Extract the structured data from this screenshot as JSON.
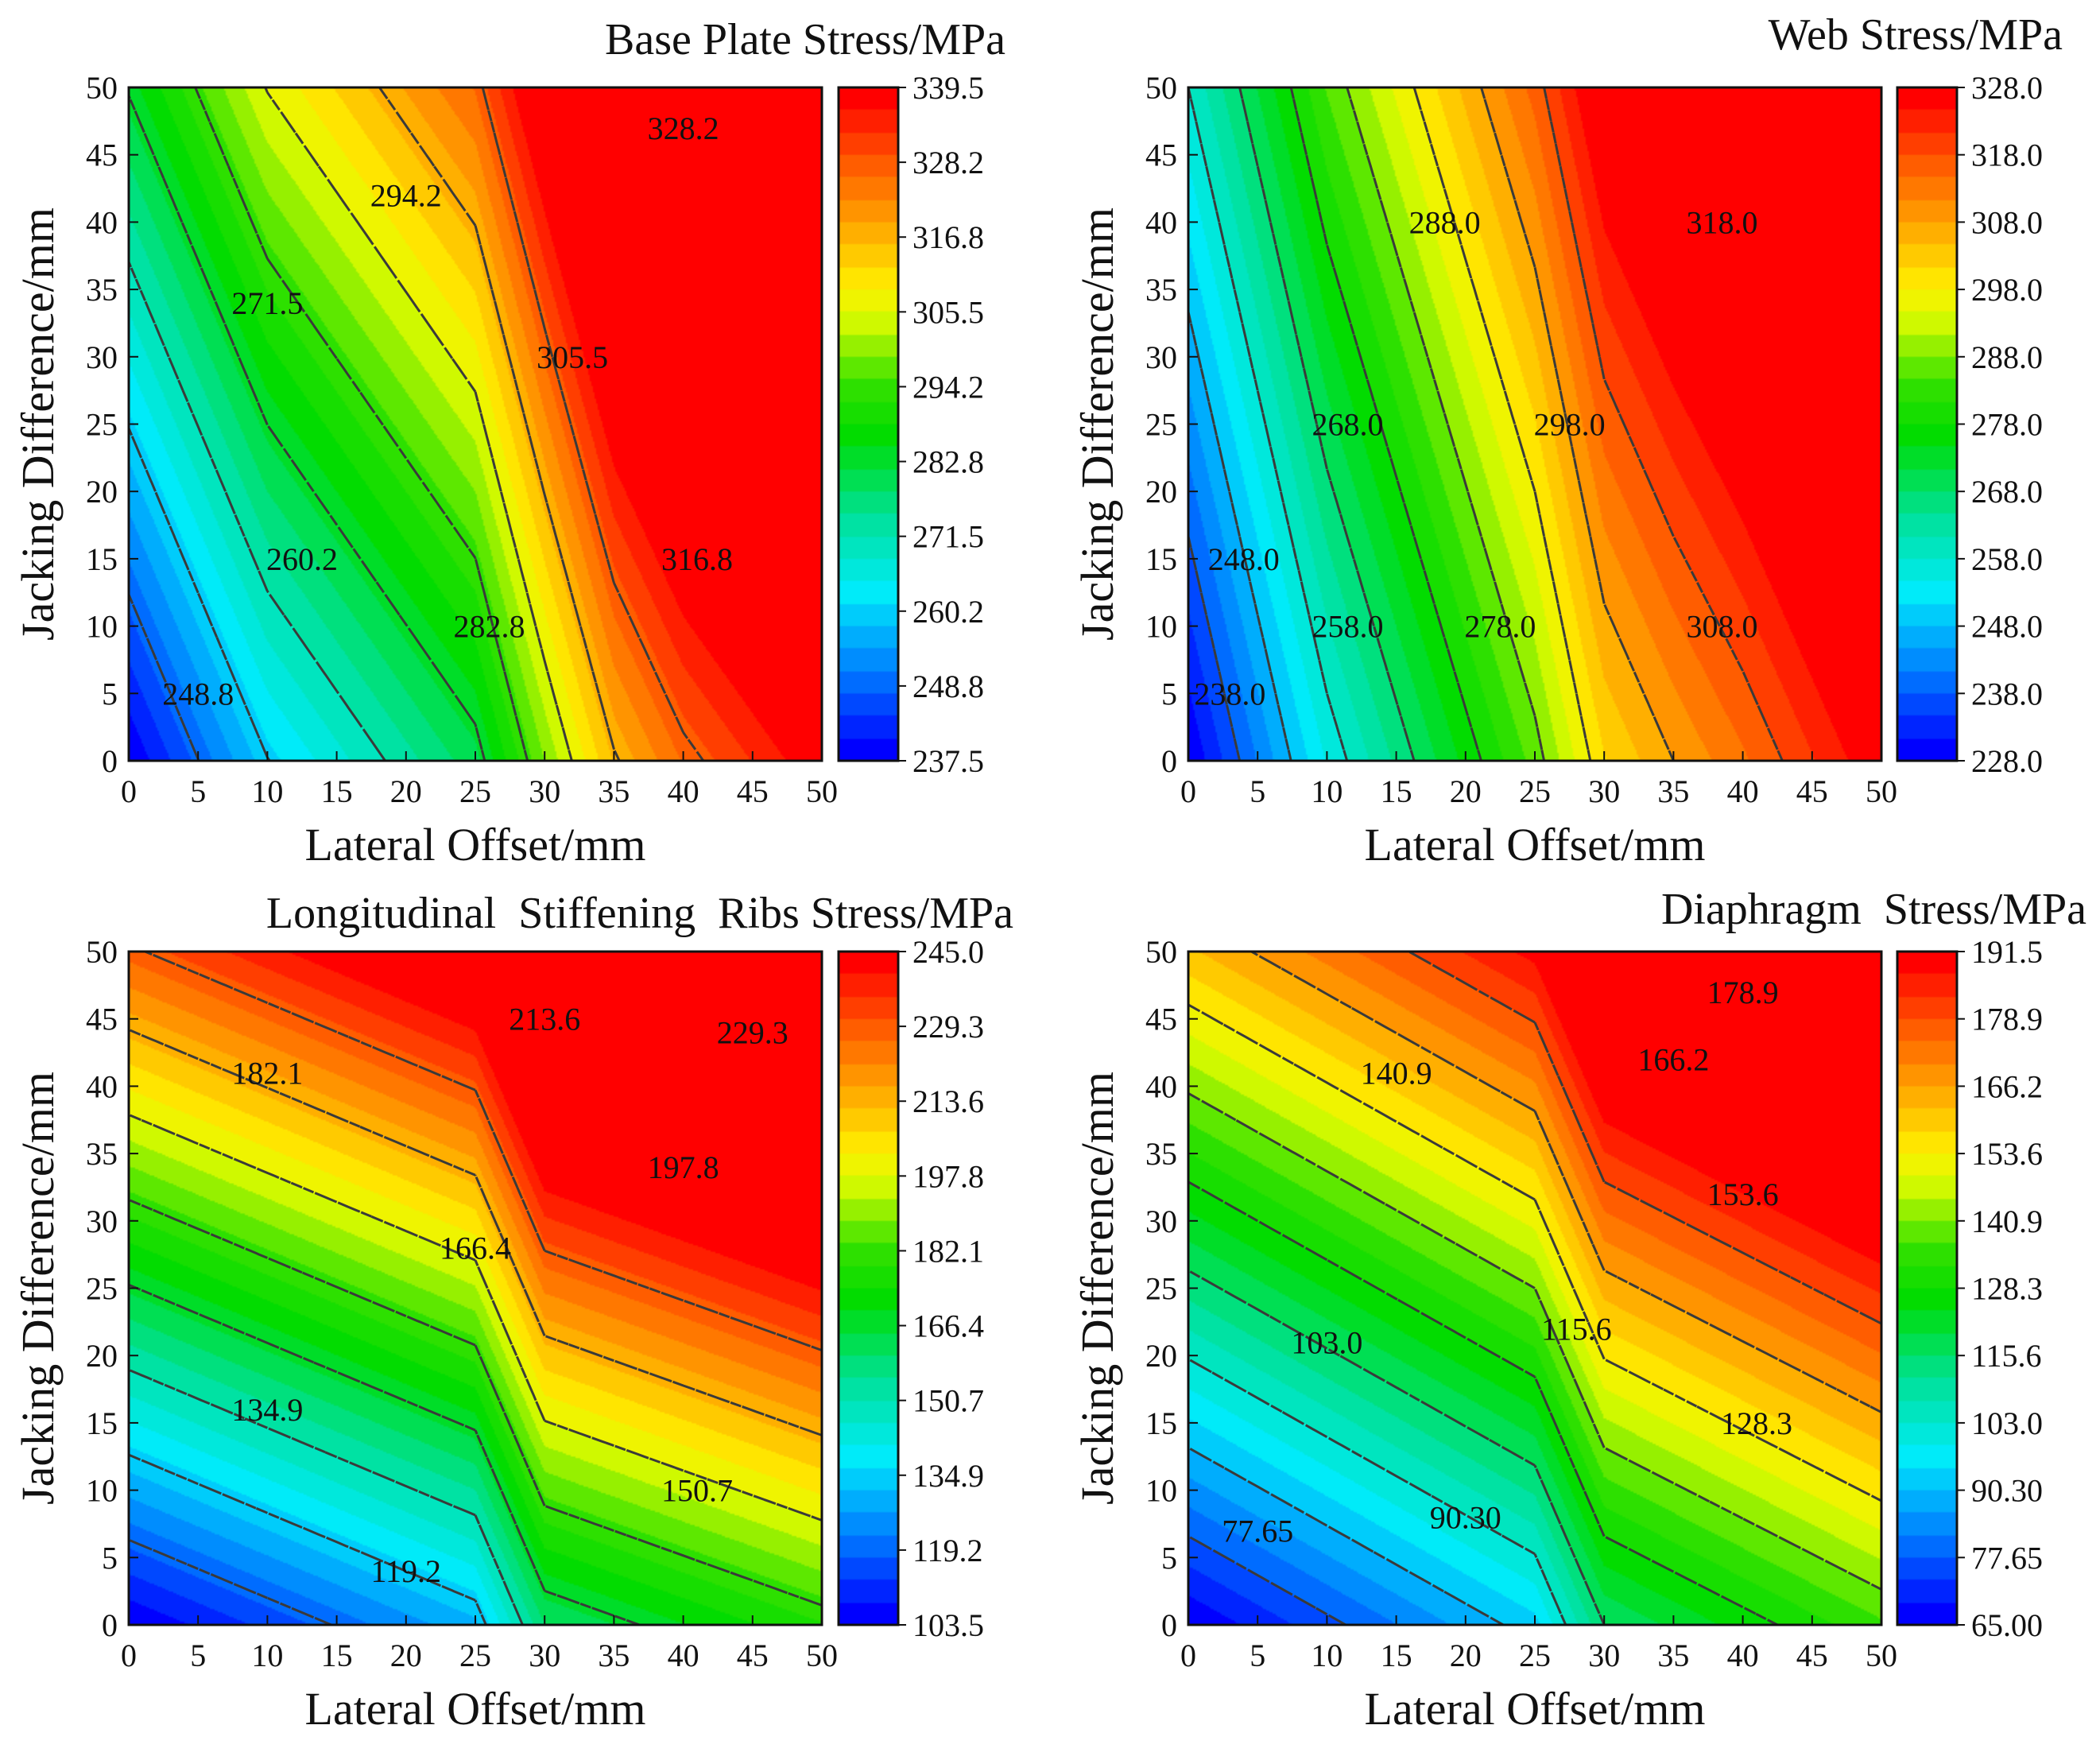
{
  "figure": {
    "background": "#ffffff"
  },
  "chart_data": [
    {
      "type": "heatmap",
      "title": "Base Plate Stress/MPa",
      "xlabel": "Lateral Offset/mm",
      "ylabel": "Jacking Difference/mm",
      "xlim": [
        0,
        50
      ],
      "ylim": [
        0,
        50
      ],
      "xticks": [
        "0",
        "5",
        "10",
        "15",
        "20",
        "25",
        "30",
        "35",
        "40",
        "45",
        "50"
      ],
      "yticks": [
        "0",
        "5",
        "10",
        "15",
        "20",
        "25",
        "30",
        "35",
        "40",
        "45",
        "50"
      ],
      "colorbar": {
        "min": 237.5,
        "max": 339.5,
        "ticks": [
          "237.5",
          "248.8",
          "260.2",
          "271.5",
          "282.8",
          "294.2",
          "305.5",
          "316.8",
          "328.2",
          "339.5"
        ]
      },
      "x_knots": [
        0,
        10,
        25,
        30,
        35,
        40,
        50
      ],
      "x_knot_values": [
        0,
        0.22,
        0.42,
        0.6,
        0.77,
        0.87,
        1.0
      ],
      "knee_x": 25,
      "y_gain": 0.45,
      "contour_labels": [
        {
          "text": "248.8",
          "x": 5,
          "y": 5
        },
        {
          "text": "260.2",
          "x": 12.5,
          "y": 15
        },
        {
          "text": "271.5",
          "x": 10,
          "y": 34
        },
        {
          "text": "282.8",
          "x": 26,
          "y": 10
        },
        {
          "text": "294.2",
          "x": 20,
          "y": 42
        },
        {
          "text": "305.5",
          "x": 32,
          "y": 30
        },
        {
          "text": "316.8",
          "x": 41,
          "y": 15
        },
        {
          "text": "328.2",
          "x": 40,
          "y": 47
        }
      ]
    },
    {
      "type": "heatmap",
      "title": "Web Stress/MPa",
      "xlabel": "Lateral Offset/mm",
      "ylabel": "Jacking Difference/mm",
      "xlim": [
        0,
        50
      ],
      "ylim": [
        0,
        50
      ],
      "xticks": [
        "0",
        "5",
        "10",
        "15",
        "20",
        "25",
        "30",
        "35",
        "40",
        "45",
        "50"
      ],
      "yticks": [
        "0",
        "5",
        "10",
        "15",
        "20",
        "25",
        "30",
        "35",
        "40",
        "45",
        "50"
      ],
      "colorbar": {
        "min": 228.0,
        "max": 328.0,
        "ticks": [
          "228.0",
          "238.0",
          "248.0",
          "258.0",
          "268.0",
          "278.0",
          "288.0",
          "298.0",
          "308.0",
          "318.0",
          "328.0"
        ]
      },
      "x_knots": [
        0,
        10,
        25,
        30,
        35,
        40,
        50
      ],
      "x_knot_values": [
        0,
        0.27,
        0.58,
        0.73,
        0.8,
        0.86,
        1.0
      ],
      "knee_x": 28,
      "y_gain": 0.3,
      "contour_labels": [
        {
          "text": "238.0",
          "x": 3,
          "y": 5
        },
        {
          "text": "248.0",
          "x": 4,
          "y": 15
        },
        {
          "text": "258.0",
          "x": 11.5,
          "y": 10
        },
        {
          "text": "268.0",
          "x": 11.5,
          "y": 25
        },
        {
          "text": "278.0",
          "x": 22.5,
          "y": 10
        },
        {
          "text": "288.0",
          "x": 18.5,
          "y": 40
        },
        {
          "text": "298.0",
          "x": 27.5,
          "y": 25
        },
        {
          "text": "308.0",
          "x": 38.5,
          "y": 10
        },
        {
          "text": "318.0",
          "x": 38.5,
          "y": 40
        }
      ]
    },
    {
      "type": "heatmap",
      "title": "Longitudinal  Stiffening  Ribs Stress/MPa",
      "xlabel": "Lateral Offset/mm",
      "ylabel": "Jacking Difference/mm",
      "xlim": [
        0,
        50
      ],
      "ylim": [
        0,
        50
      ],
      "xticks": [
        "0",
        "5",
        "10",
        "15",
        "20",
        "25",
        "30",
        "35",
        "40",
        "45",
        "50"
      ],
      "yticks": [
        "0",
        "5",
        "10",
        "15",
        "20",
        "25",
        "30",
        "35",
        "40",
        "45",
        "50"
      ],
      "colorbar": {
        "min": 103.5,
        "max": 245.0,
        "ticks": [
          "103.5",
          "119.2",
          "134.9",
          "150.7",
          "166.4",
          "182.1",
          "197.8",
          "213.6",
          "229.3",
          "245.0"
        ]
      },
      "x_knots": [
        0,
        25,
        30,
        50
      ],
      "x_knot_values": [
        0,
        0.19,
        0.4,
        0.53
      ],
      "knee_x": 25,
      "y_gain": 0.88,
      "contour_labels": [
        {
          "text": "119.2",
          "x": 20,
          "y": 4
        },
        {
          "text": "134.9",
          "x": 10,
          "y": 16
        },
        {
          "text": "150.7",
          "x": 41,
          "y": 10
        },
        {
          "text": "166.4",
          "x": 25,
          "y": 28
        },
        {
          "text": "182.1",
          "x": 10,
          "y": 41
        },
        {
          "text": "197.8",
          "x": 40,
          "y": 34
        },
        {
          "text": "213.6",
          "x": 30,
          "y": 45
        },
        {
          "text": "229.3",
          "x": 45,
          "y": 44
        }
      ]
    },
    {
      "type": "heatmap",
      "title": "Diaphragm  Stress/MPa",
      "xlabel": "Lateral Offset/mm",
      "ylabel": "Jacking Difference/mm",
      "xlim": [
        0,
        50
      ],
      "ylim": [
        0,
        50
      ],
      "xticks": [
        "0",
        "5",
        "10",
        "15",
        "20",
        "25",
        "30",
        "35",
        "40",
        "45",
        "50"
      ],
      "yticks": [
        "0",
        "5",
        "10",
        "15",
        "20",
        "25",
        "30",
        "35",
        "40",
        "45",
        "50"
      ],
      "colorbar": {
        "min": 65.0,
        "max": 191.5,
        "ticks": [
          "65.00",
          "77.65",
          "90.30",
          "103.0",
          "115.6",
          "128.3",
          "140.9",
          "153.6",
          "166.2",
          "178.9",
          "191.5"
        ]
      },
      "x_knots": [
        0,
        25,
        30,
        50
      ],
      "x_knot_values": [
        0,
        0.22,
        0.4,
        0.56
      ],
      "knee_x": 27,
      "y_gain": 0.76,
      "contour_labels": [
        {
          "text": "77.65",
          "x": 5,
          "y": 7
        },
        {
          "text": "90.30",
          "x": 20,
          "y": 8
        },
        {
          "text": "103.0",
          "x": 10,
          "y": 21
        },
        {
          "text": "115.6",
          "x": 28,
          "y": 22
        },
        {
          "text": "128.3",
          "x": 41,
          "y": 15
        },
        {
          "text": "140.9",
          "x": 15,
          "y": 41
        },
        {
          "text": "153.6",
          "x": 40,
          "y": 32
        },
        {
          "text": "166.2",
          "x": 35,
          "y": 42
        },
        {
          "text": "178.9",
          "x": 40,
          "y": 47
        }
      ]
    }
  ]
}
